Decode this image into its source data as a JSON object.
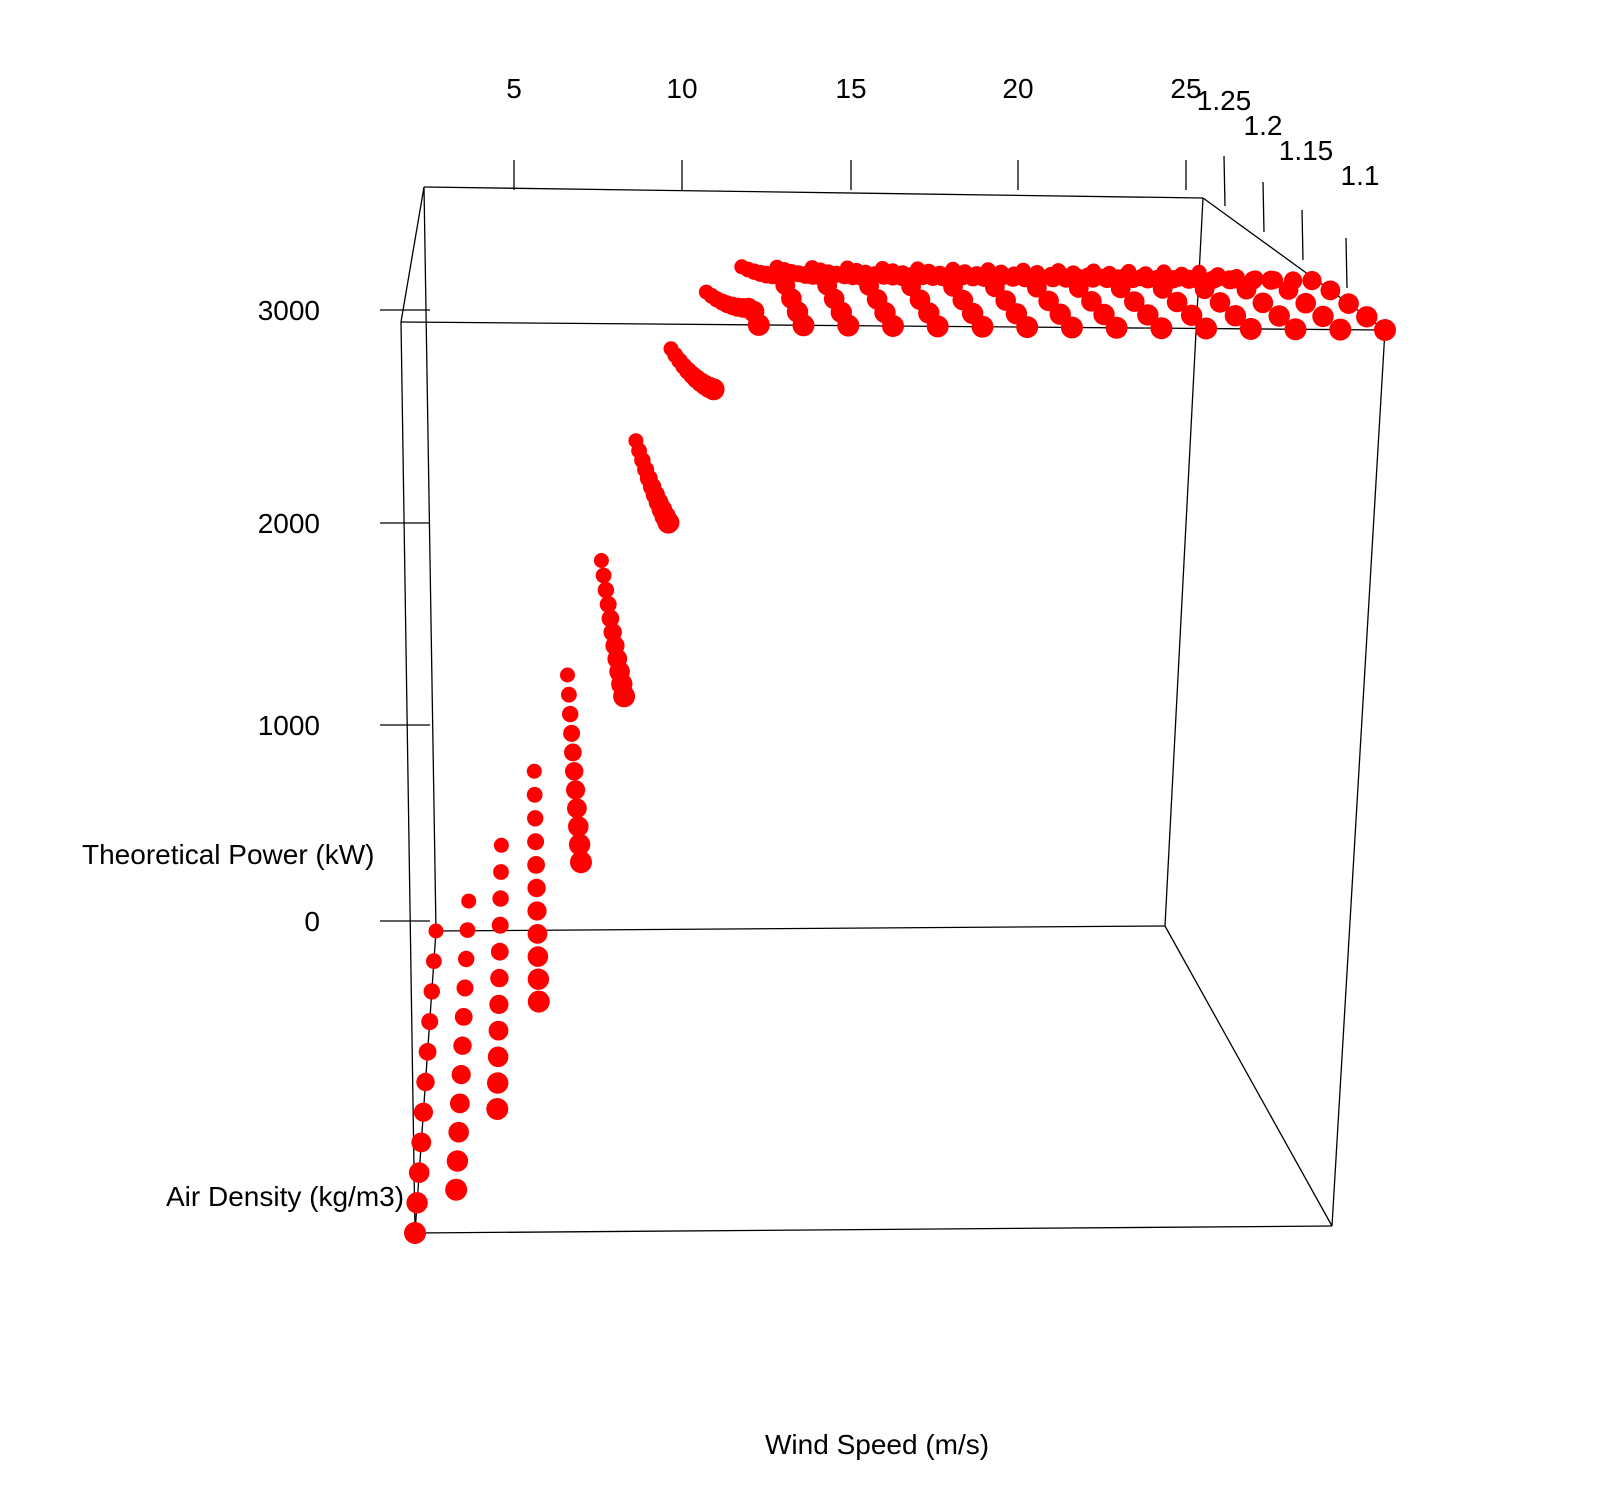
{
  "chart_data": {
    "type": "scatter",
    "projection": "3d-perspective",
    "x": {
      "label": "Wind Speed (m/s)",
      "ticks": [
        5,
        10,
        15,
        20,
        25
      ],
      "range": [
        3,
        25
      ]
    },
    "y": {
      "label": "Air Density (kg/m3)",
      "ticks": [
        1.1,
        1.15,
        1.2,
        1.25
      ],
      "range": [
        1.1,
        1.3
      ]
    },
    "z": {
      "label": "Theoretical Power (kW)",
      "ticks": [
        0,
        1000,
        2000,
        3000
      ],
      "range": [
        0,
        3600
      ]
    },
    "marker_color": "#ff0000",
    "box": true,
    "grid": false,
    "series": [
      {
        "wind_speed": [
          3,
          4,
          5,
          6,
          7,
          8,
          9,
          10,
          11,
          12,
          13,
          14,
          15,
          16,
          17,
          18,
          19,
          20,
          21,
          22,
          23,
          24,
          25
        ],
        "air_density": [
          1.1,
          1.12,
          1.14,
          1.16,
          1.18,
          1.2,
          1.22,
          1.24,
          1.26,
          1.28,
          1.3
        ],
        "curve_at_1_225": [
          {
            "ws": 3,
            "power_kw": 0
          },
          {
            "ws": 4,
            "power_kw": 160
          },
          {
            "ws": 5,
            "power_kw": 460
          },
          {
            "ws": 6,
            "power_kw": 860
          },
          {
            "ws": 7,
            "power_kw": 1380
          },
          {
            "ws": 8,
            "power_kw": 2000
          },
          {
            "ws": 9,
            "power_kw": 2650
          },
          {
            "ws": 10,
            "power_kw": 3150
          },
          {
            "ws": 11,
            "power_kw": 3460
          },
          {
            "ws": 12,
            "power_kw": 3600
          }
        ]
      }
    ]
  }
}
